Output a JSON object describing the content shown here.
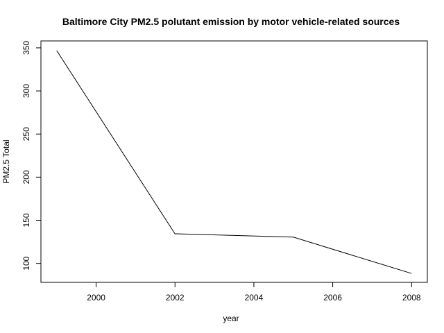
{
  "chart_data": {
    "type": "line",
    "title": "Baltimore City PM2.5 polutant emission by motor vehicle-related sources",
    "xlabel": "year",
    "ylabel": "PM2.5 Total",
    "x": [
      1999,
      2002,
      2005,
      2008
    ],
    "series": [
      {
        "values": [
          346.82,
          134.31,
          130.43,
          88.28
        ]
      }
    ],
    "xlim": [
      1998.6,
      2008.4
    ],
    "ylim": [
      78,
      358
    ],
    "xticks": [
      2000,
      2002,
      2004,
      2006,
      2008
    ],
    "yticks": [
      100,
      150,
      200,
      250,
      300,
      350
    ],
    "grid": false,
    "line_color": "#000000"
  }
}
